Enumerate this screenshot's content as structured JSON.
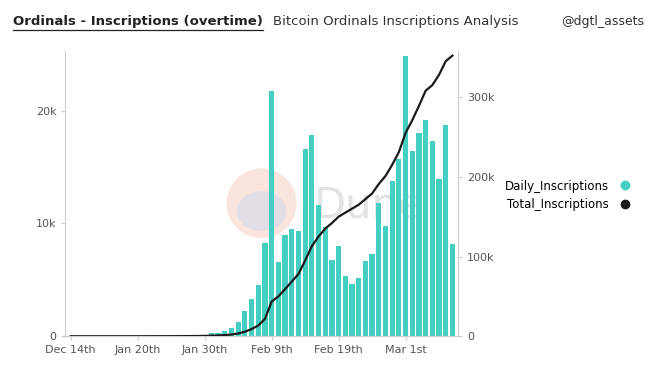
{
  "chart_data": {
    "type": "bar",
    "title": "Ordinals - Inscriptions (overtime)",
    "subtitle": "Bitcoin Ordinals Inscriptions Analysis",
    "annotations": [
      "@dgtl_assets",
      "Dune"
    ],
    "categories": [
      "Dec 14th",
      null,
      null,
      null,
      null,
      null,
      null,
      null,
      null,
      null,
      "Jan 20th",
      null,
      null,
      null,
      null,
      null,
      null,
      null,
      null,
      null,
      "Jan 30th",
      null,
      null,
      null,
      null,
      null,
      null,
      null,
      null,
      null,
      "Feb 9th",
      null,
      null,
      null,
      null,
      null,
      null,
      null,
      null,
      null,
      "Feb 19th",
      null,
      null,
      null,
      null,
      null,
      null,
      null,
      null,
      null,
      "Mar 1st",
      null,
      null,
      null,
      null,
      null,
      null,
      null
    ],
    "series": [
      {
        "name": "Daily_Inscriptions",
        "type": "bar",
        "color": "#45cfc3",
        "values": [
          1,
          0,
          0,
          1,
          0,
          2,
          1,
          3,
          2,
          4,
          5,
          8,
          10,
          15,
          20,
          25,
          30,
          40,
          60,
          100,
          150,
          250,
          300,
          450,
          700,
          1300,
          2200,
          3300,
          4500,
          8300,
          21700,
          6600,
          9000,
          9500,
          9300,
          16600,
          17800,
          11600,
          9700,
          6800,
          8000,
          5300,
          4600,
          5200,
          6700,
          7300,
          11800,
          9800,
          13800,
          15700,
          24800,
          16400,
          18000,
          19200,
          17300,
          13900,
          18700,
          8200
        ]
      },
      {
        "name": "Total_Inscriptions",
        "type": "line",
        "axis": "y2",
        "color": "#1a1a1a",
        "values": [
          1,
          1,
          1,
          2,
          2,
          4,
          5,
          8,
          10,
          14,
          19,
          27,
          37,
          52,
          72,
          97,
          127,
          167,
          227,
          327,
          477,
          727,
          1027,
          1477,
          2177,
          3477,
          5677,
          8977,
          13477,
          21777,
          43477,
          50000,
          59000,
          68500,
          78000,
          95000,
          113000,
          125000,
          135000,
          142000,
          150000,
          155000,
          160000,
          165000,
          172000,
          179000,
          191000,
          201000,
          215000,
          231000,
          255000,
          271000,
          289000,
          308000,
          315000,
          328000,
          345000,
          352000
        ]
      }
    ],
    "ylim": [
      0,
      25300
    ],
    "yticks": [
      0,
      {
        "value": 10000,
        "label": "10k"
      },
      {
        "value": 20000,
        "label": "20k"
      }
    ],
    "y2lim": [
      0,
      358000
    ],
    "y2ticks": [
      0,
      {
        "value": 100000,
        "label": "100k"
      },
      {
        "value": 200000,
        "label": "200k"
      },
      {
        "value": 300000,
        "label": "300k"
      }
    ],
    "grid": false,
    "legend": "right"
  }
}
